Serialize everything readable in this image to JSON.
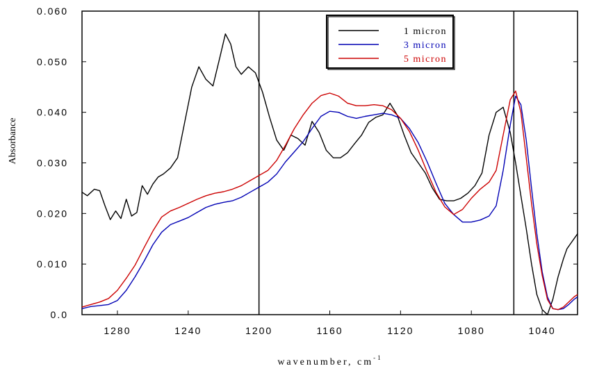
{
  "chart_data": {
    "type": "line",
    "title": "",
    "xlabel": "wavenumber, cm",
    "xlabel_superscript": "-1",
    "ylabel": "Absorbance",
    "xlim": [
      1300,
      1020
    ],
    "ylim": [
      0,
      0.06
    ],
    "x_reversed": true,
    "xticks": [
      1280,
      1240,
      1200,
      1160,
      1120,
      1080,
      1040
    ],
    "xtick_labels": [
      "1280",
      "1240",
      "1200",
      "1160",
      "1120",
      "1080",
      "1040"
    ],
    "yticks": [
      0,
      0.01,
      0.02,
      0.03,
      0.04,
      0.05,
      0.06
    ],
    "ytick_labels": [
      "0.0",
      "0.010",
      "0.020",
      "0.030",
      "0.040",
      "0.050",
      "0.060"
    ],
    "reference_lines_x": [
      1200,
      1056
    ],
    "grid": false,
    "legend_position": "top-right",
    "series": [
      {
        "name": "1 micron",
        "color": "#000000",
        "x": [
          1300,
          1297,
          1293,
          1290,
          1287,
          1284,
          1281,
          1278,
          1275,
          1272,
          1269,
          1266,
          1263,
          1260,
          1257,
          1254,
          1250,
          1246,
          1242,
          1238,
          1234,
          1230,
          1226,
          1222,
          1219,
          1216,
          1213,
          1210,
          1206,
          1202,
          1198,
          1194,
          1190,
          1186,
          1182,
          1178,
          1174,
          1170,
          1166,
          1162,
          1158,
          1154,
          1150,
          1146,
          1142,
          1138,
          1134,
          1130,
          1126,
          1122,
          1118,
          1114,
          1110,
          1106,
          1102,
          1098,
          1094,
          1090,
          1086,
          1082,
          1078,
          1074,
          1070,
          1066,
          1062,
          1058,
          1055,
          1052,
          1049,
          1046,
          1043,
          1040,
          1037,
          1034,
          1031,
          1028,
          1026,
          1024,
          1022,
          1020
        ],
        "values": [
          0.0242,
          0.0235,
          0.0248,
          0.0245,
          0.0215,
          0.0188,
          0.0205,
          0.019,
          0.0228,
          0.0195,
          0.0202,
          0.0255,
          0.0238,
          0.0258,
          0.0272,
          0.0278,
          0.029,
          0.031,
          0.038,
          0.045,
          0.049,
          0.0465,
          0.0452,
          0.051,
          0.0555,
          0.0535,
          0.049,
          0.0475,
          0.049,
          0.0478,
          0.044,
          0.039,
          0.0345,
          0.0325,
          0.0355,
          0.0348,
          0.0335,
          0.0382,
          0.036,
          0.0325,
          0.031,
          0.031,
          0.032,
          0.0338,
          0.0355,
          0.038,
          0.039,
          0.0395,
          0.0418,
          0.0395,
          0.0355,
          0.032,
          0.03,
          0.028,
          0.025,
          0.0228,
          0.0225,
          0.0225,
          0.023,
          0.024,
          0.0255,
          0.028,
          0.0355,
          0.04,
          0.041,
          0.036,
          0.03,
          0.0235,
          0.017,
          0.01,
          0.004,
          0.001,
          0.0,
          0.003,
          0.0075,
          0.011,
          0.013,
          0.014,
          0.015,
          0.016
        ]
      },
      {
        "name": "3 micron",
        "color": "#0000b4",
        "x": [
          1300,
          1295,
          1290,
          1285,
          1280,
          1275,
          1270,
          1265,
          1260,
          1255,
          1250,
          1245,
          1240,
          1235,
          1230,
          1225,
          1220,
          1215,
          1210,
          1205,
          1200,
          1195,
          1190,
          1185,
          1180,
          1175,
          1170,
          1165,
          1160,
          1155,
          1150,
          1145,
          1140,
          1135,
          1130,
          1125,
          1120,
          1115,
          1110,
          1105,
          1100,
          1095,
          1090,
          1085,
          1080,
          1075,
          1070,
          1066,
          1062,
          1058,
          1055,
          1052,
          1049,
          1046,
          1043,
          1040,
          1037,
          1034,
          1031,
          1028,
          1025,
          1022,
          1020
        ],
        "values": [
          0.0012,
          0.0016,
          0.0018,
          0.002,
          0.0028,
          0.0048,
          0.0075,
          0.0105,
          0.0138,
          0.0163,
          0.0178,
          0.0185,
          0.0192,
          0.0202,
          0.0212,
          0.0218,
          0.0222,
          0.0225,
          0.0232,
          0.0242,
          0.0252,
          0.0262,
          0.0278,
          0.0302,
          0.0322,
          0.0342,
          0.0368,
          0.0392,
          0.0402,
          0.04,
          0.0392,
          0.0388,
          0.0392,
          0.0395,
          0.0398,
          0.0395,
          0.0388,
          0.0368,
          0.034,
          0.0302,
          0.026,
          0.022,
          0.0198,
          0.0183,
          0.0183,
          0.0187,
          0.0195,
          0.0215,
          0.0285,
          0.0375,
          0.0432,
          0.0415,
          0.0345,
          0.025,
          0.016,
          0.0085,
          0.0035,
          0.0012,
          0.001,
          0.0012,
          0.002,
          0.003,
          0.0035
        ]
      },
      {
        "name": "5 micron",
        "color": "#cc0000",
        "x": [
          1300,
          1295,
          1290,
          1285,
          1280,
          1275,
          1270,
          1265,
          1260,
          1255,
          1250,
          1245,
          1240,
          1235,
          1230,
          1225,
          1220,
          1215,
          1210,
          1205,
          1200,
          1195,
          1190,
          1185,
          1180,
          1175,
          1170,
          1165,
          1160,
          1155,
          1150,
          1145,
          1140,
          1135,
          1130,
          1125,
          1120,
          1115,
          1110,
          1105,
          1100,
          1095,
          1090,
          1085,
          1080,
          1075,
          1070,
          1066,
          1062,
          1058,
          1055,
          1052,
          1049,
          1046,
          1043,
          1040,
          1037,
          1034,
          1031,
          1028,
          1025,
          1022,
          1020
        ],
        "values": [
          0.0015,
          0.002,
          0.0025,
          0.0032,
          0.0048,
          0.0072,
          0.0098,
          0.0132,
          0.0165,
          0.0193,
          0.0205,
          0.0212,
          0.022,
          0.0228,
          0.0235,
          0.024,
          0.0243,
          0.0248,
          0.0255,
          0.0265,
          0.0275,
          0.0285,
          0.0305,
          0.0335,
          0.0368,
          0.0395,
          0.0418,
          0.0433,
          0.0438,
          0.0432,
          0.0418,
          0.0413,
          0.0413,
          0.0415,
          0.0413,
          0.0405,
          0.0388,
          0.0362,
          0.0325,
          0.0282,
          0.0242,
          0.0213,
          0.0198,
          0.0208,
          0.023,
          0.0248,
          0.0262,
          0.0285,
          0.0355,
          0.0425,
          0.0442,
          0.04,
          0.031,
          0.022,
          0.014,
          0.0078,
          0.003,
          0.0012,
          0.001,
          0.0015,
          0.0025,
          0.0035,
          0.004
        ]
      }
    ]
  }
}
